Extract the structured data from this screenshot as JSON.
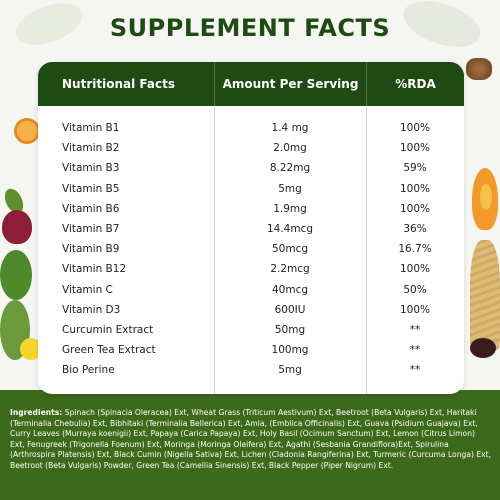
{
  "title": "SUPPLEMENT FACTS",
  "table": {
    "headers": [
      "Nutritional Facts",
      "Amount Per Serving",
      "%RDA"
    ],
    "rows": [
      {
        "name": "Vitamin B1",
        "amount": "1.4 mg",
        "rda": "100%"
      },
      {
        "name": "Vitamin B2",
        "amount": "2.0mg",
        "rda": "100%"
      },
      {
        "name": "Vitamin B3",
        "amount": "8.22mg",
        "rda": "59%"
      },
      {
        "name": "Vitamin B5",
        "amount": "5mg",
        "rda": "100%"
      },
      {
        "name": "Vitamin B6",
        "amount": "1.9mg",
        "rda": "100%"
      },
      {
        "name": "Vitamin B7",
        "amount": "14.4mcg",
        "rda": "36%"
      },
      {
        "name": "Vitamin B9",
        "amount": "50mcg",
        "rda": "16.7%"
      },
      {
        "name": "Vitamin B12",
        "amount": "2.2mcg",
        "rda": "100%"
      },
      {
        "name": "Vitamin C",
        "amount": "40mcg",
        "rda": "50%"
      },
      {
        "name": "Vitamin D3",
        "amount": "600IU",
        "rda": "100%"
      },
      {
        "name": "Curcumin Extract",
        "amount": "50mg",
        "rda": "**"
      },
      {
        "name": "Green Tea Extract",
        "amount": "100mg",
        "rda": "**"
      },
      {
        "name": "Bio Perine",
        "amount": "5mg",
        "rda": "**"
      }
    ]
  },
  "ingredients": {
    "label": "Ingredients:",
    "text": " Spinach (Spinacia Oleracea) Ext, Wheat Grass (Triticum Aestivum) Ext, Beetroot (Beta Vulgaris) Ext, Haritaki (Terminalia Chebulia) Ext, Bibhitaki (Terminalia Bellerica) Ext, Amla, (Emblica Officinalis) Ext, Guava (Psidium Guajava) Ext, Curry Leaves (Murraya koenigii) Ext, Papaya (Carica Papaya) Ext, Holy Basil (Ocimum Sanctum) Ext, Lemon (Citrus Limon) Ext, Fenugreek (Trigonella Foenum) Ext, Moringa (Moringa Oleifera) Ext, Agathi (Sesbania Grandiflora)Ext, Spirulina (Arthrospira Platensis) Ext, Black Cumin (Nigella Sativa) Ext, Lichen (Cladonia Rangiferina) Ext, Turmeric (Curcuma Longa) Ext, Beetroot (Beta Vulgaris) Powder, Green Tea (Camellia Sinensis) Ext, Black Pepper (Piper Nigrum) Ext."
  },
  "colors": {
    "brand_green": "#1f4a14",
    "background": "#f5f5f1",
    "ground_green": "#3d6a1a"
  }
}
